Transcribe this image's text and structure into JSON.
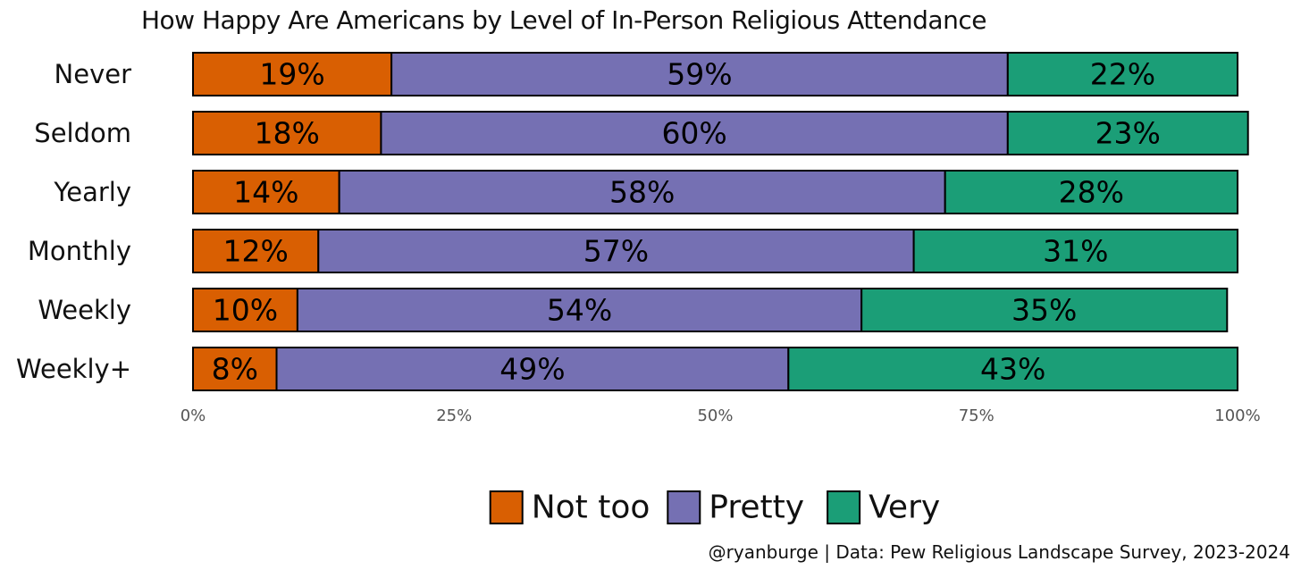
{
  "title": "How Happy Are Americans by Level of In-Person Religious Attendance",
  "caption": "@ryanburge | Data: Pew Religious Landscape Survey, 2023-2024",
  "chart_data": {
    "type": "bar",
    "orientation": "horizontal",
    "stacked": true,
    "title": "How Happy Are Americans by Level of In-Person Religious Attendance",
    "categories": [
      "Never",
      "Seldom",
      "Yearly",
      "Monthly",
      "Weekly",
      "Weekly+"
    ],
    "series": [
      {
        "name": "Not too",
        "color": "#d95f02",
        "values": [
          19,
          18,
          14,
          12,
          10,
          8
        ]
      },
      {
        "name": "Pretty",
        "color": "#7570b3",
        "values": [
          59,
          60,
          58,
          57,
          54,
          49
        ]
      },
      {
        "name": "Very",
        "color": "#1b9e77",
        "values": [
          22,
          23,
          28,
          31,
          35,
          43
        ]
      }
    ],
    "data_labels": [
      [
        "19%",
        "59%",
        "22%"
      ],
      [
        "18%",
        "60%",
        "23%"
      ],
      [
        "14%",
        "58%",
        "28%"
      ],
      [
        "12%",
        "57%",
        "31%"
      ],
      [
        "10%",
        "54%",
        "35%"
      ],
      [
        "8%",
        "49%",
        "43%"
      ]
    ],
    "xlim": [
      0,
      100
    ],
    "x_ticks": [
      0,
      25,
      50,
      75,
      100
    ],
    "x_tick_labels": [
      "0%",
      "25%",
      "50%",
      "75%",
      "100%"
    ],
    "xlabel": "",
    "ylabel": "",
    "grid": false,
    "legend_position": "bottom",
    "legend_labels": [
      "Not too",
      "Pretty",
      "Very"
    ]
  }
}
